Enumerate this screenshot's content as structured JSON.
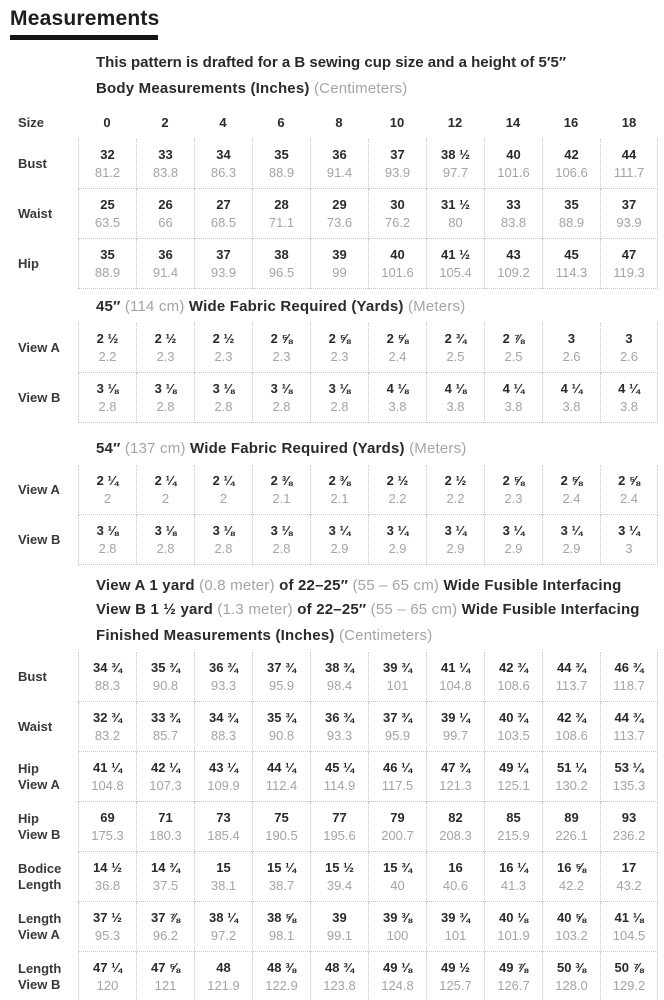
{
  "colors": {
    "ink": "#2b2a29",
    "muted_gray": "#a4a4a6",
    "dotted_rule": "#c9c9c9",
    "title_underline": "#161415"
  },
  "header": {
    "title": "Measurements"
  },
  "intro": "This pattern is drafted for a B sewing cup size and a height of 5′5″",
  "sizes": {
    "label": "Size",
    "values": [
      "0",
      "2",
      "4",
      "6",
      "8",
      "10",
      "12",
      "14",
      "16",
      "18"
    ]
  },
  "sections": {
    "body": {
      "heading": [
        {
          "t": "Body Measurements (Inches)",
          "muted": false
        },
        {
          "t": "(Centimeters)",
          "muted": true
        }
      ],
      "rows": [
        {
          "label_lines": [
            "Bust"
          ],
          "inches": [
            "32",
            "33",
            "34",
            "35",
            "36",
            "37",
            "38 ½",
            "40",
            "42",
            "44"
          ],
          "cm": [
            "81.2",
            "83.8",
            "86.3",
            "88.9",
            "91.4",
            "93.9",
            "97.7",
            "101.6",
            "106.6",
            "111.7"
          ]
        },
        {
          "label_lines": [
            "Waist"
          ],
          "inches": [
            "25",
            "26",
            "27",
            "28",
            "29",
            "30",
            "31 ½",
            "33",
            "35",
            "37"
          ],
          "cm": [
            "63.5",
            "66",
            "68.5",
            "71.1",
            "73.6",
            "76.2",
            "80",
            "83.8",
            "88.9",
            "93.9"
          ]
        },
        {
          "label_lines": [
            "Hip"
          ],
          "inches": [
            "35",
            "36",
            "37",
            "38",
            "39",
            "40",
            "41 ½",
            "43",
            "45",
            "47"
          ],
          "cm": [
            "88.9",
            "91.4",
            "93.9",
            "96.5",
            "99",
            "101.6",
            "105.4",
            "109.2",
            "114.3",
            "119.3"
          ]
        }
      ]
    },
    "fabric45": {
      "heading": [
        {
          "t": "45″",
          "muted": false
        },
        {
          "t": "(114 cm)",
          "muted": true
        },
        {
          "t": "Wide Fabric Required (Yards)",
          "muted": false
        },
        {
          "t": "(Meters)",
          "muted": true
        }
      ],
      "rows": [
        {
          "label_lines": [
            "View A"
          ],
          "inches": [
            "2 ½",
            "2 ½",
            "2 ½",
            "2 ⅝",
            "2 ⅝",
            "2 ⅝",
            "2 ¾",
            "2 ⅞",
            "3",
            "3"
          ],
          "cm": [
            "2.2",
            "2.3",
            "2.3",
            "2.3",
            "2.3",
            "2.4",
            "2.5",
            "2.5",
            "2.6",
            "2.6"
          ]
        },
        {
          "label_lines": [
            "View B"
          ],
          "inches": [
            "3 ⅛",
            "3 ⅛",
            "3 ⅛",
            "3 ⅛",
            "3 ⅛",
            "4 ⅛",
            "4 ⅛",
            "4 ¼",
            "4 ¼",
            "4 ¼"
          ],
          "cm": [
            "2.8",
            "2.8",
            "2.8",
            "2.8",
            "2.8",
            "3.8",
            "3.8",
            "3.8",
            "3.8",
            "3.8"
          ]
        }
      ]
    },
    "fabric54": {
      "heading": [
        {
          "t": "54″",
          "muted": false
        },
        {
          "t": "(137 cm)",
          "muted": true
        },
        {
          "t": "Wide Fabric Required (Yards)",
          "muted": false
        },
        {
          "t": "(Meters)",
          "muted": true
        }
      ],
      "rows": [
        {
          "label_lines": [
            "View A"
          ],
          "inches": [
            "2 ¼",
            "2 ¼",
            "2 ¼",
            "2 ⅜",
            "2 ⅜",
            "2 ½",
            "2 ½",
            "2 ⅝",
            "2 ⅝",
            "2 ⅝"
          ],
          "cm": [
            "2",
            "2",
            "2",
            "2.1",
            "2.1",
            "2.2",
            "2.2",
            "2.3",
            "2.4",
            "2.4"
          ]
        },
        {
          "label_lines": [
            "View B"
          ],
          "inches": [
            "3 ⅛",
            "3 ⅛",
            "3 ⅛",
            "3 ⅛",
            "3 ¼",
            "3 ¼",
            "3 ¼",
            "3 ¼",
            "3 ¼",
            "3 ¼"
          ],
          "cm": [
            "2.8",
            "2.8",
            "2.8",
            "2.8",
            "2.9",
            "2.9",
            "2.9",
            "2.9",
            "2.9",
            "3"
          ]
        }
      ]
    },
    "finished": {
      "heading": [
        {
          "t": "Finished Measurements (Inches)",
          "muted": false
        },
        {
          "t": "(Centimeters)",
          "muted": true
        }
      ],
      "rows": [
        {
          "label_lines": [
            "Bust"
          ],
          "inches": [
            "34 ¾",
            "35 ¾",
            "36 ¾",
            "37 ¾",
            "38 ¾",
            "39 ¾",
            "41 ¼",
            "42 ¾",
            "44 ¾",
            "46 ¾"
          ],
          "cm": [
            "88.3",
            "90.8",
            "93.3",
            "95.9",
            "98.4",
            "101",
            "104.8",
            "108.6",
            "113.7",
            "118.7"
          ]
        },
        {
          "label_lines": [
            "Waist"
          ],
          "inches": [
            "32 ¾",
            "33 ¾",
            "34 ¾",
            "35 ¾",
            "36 ¾",
            "37 ¾",
            "39 ¼",
            "40 ¾",
            "42 ¾",
            "44 ¾"
          ],
          "cm": [
            "83.2",
            "85.7",
            "88.3",
            "90.8",
            "93.3",
            "95.9",
            "99.7",
            "103.5",
            "108.6",
            "113.7"
          ]
        },
        {
          "label_lines": [
            "Hip",
            "View A"
          ],
          "inches": [
            "41 ¼",
            "42 ¼",
            "43 ¼",
            "44 ¼",
            "45 ¼",
            "46 ¼",
            "47 ¾",
            "49 ¼",
            "51 ¼",
            "53 ¼"
          ],
          "cm": [
            "104.8",
            "107.3",
            "109.9",
            "112.4",
            "114.9",
            "117.5",
            "121.3",
            "125.1",
            "130.2",
            "135.3"
          ]
        },
        {
          "label_lines": [
            "Hip",
            "View B"
          ],
          "inches": [
            "69",
            "71",
            "73",
            "75",
            "77",
            "79",
            "82",
            "85",
            "89",
            "93"
          ],
          "cm": [
            "175.3",
            "180.3",
            "185.4",
            "190.5",
            "195.6",
            "200.7",
            "208.3",
            "215.9",
            "226.1",
            "236.2"
          ]
        },
        {
          "label_lines": [
            "Bodice",
            "Length"
          ],
          "inches": [
            "14 ½",
            "14 ¾",
            "15",
            "15 ¼",
            "15 ½",
            "15 ¾",
            "16",
            "16 ¼",
            "16 ⅝",
            "17"
          ],
          "cm": [
            "36.8",
            "37.5",
            "38.1",
            "38.7",
            "39.4",
            "40",
            "40.6",
            "41.3",
            "42.2",
            "43.2"
          ]
        },
        {
          "label_lines": [
            "Length",
            "View A"
          ],
          "inches": [
            "37 ½",
            "37 ⅞",
            "38 ¼",
            "38 ⅝",
            "39",
            "39 ⅜",
            "39 ¾",
            "40 ⅛",
            "40 ⅝",
            "41 ⅛"
          ],
          "cm": [
            "95.3",
            "96.2",
            "97.2",
            "98.1",
            "99.1",
            "100",
            "101",
            "101.9",
            "103.2",
            "104.5"
          ]
        },
        {
          "label_lines": [
            "Length",
            "View B"
          ],
          "inches": [
            "47 ¼",
            "47 ⅝",
            "48",
            "48 ⅜",
            "48 ¾",
            "49 ⅛",
            "49 ½",
            "49 ⅞",
            "50 ⅜",
            "50 ⅞"
          ],
          "cm": [
            "120",
            "121",
            "121.9",
            "122.9",
            "123.8",
            "124.8",
            "125.7",
            "126.7",
            "128.0",
            "129.2"
          ]
        }
      ]
    }
  },
  "interfacing": {
    "view_a": [
      {
        "t": "View A 1 yard",
        "muted": false
      },
      {
        "t": "(0.8 meter)",
        "muted": true
      },
      {
        "t": "of 22–25″",
        "muted": false
      },
      {
        "t": "(55 – 65 cm)",
        "muted": true
      },
      {
        "t": "Wide Fusible Interfacing",
        "muted": false
      }
    ],
    "view_b": [
      {
        "t": "View B 1 ½ yard",
        "muted": false
      },
      {
        "t": "(1.3 meter)",
        "muted": true
      },
      {
        "t": "of 22–25″",
        "muted": false
      },
      {
        "t": "(55 – 65 cm)",
        "muted": true
      },
      {
        "t": "Wide Fusible Interfacing",
        "muted": false
      }
    ]
  }
}
